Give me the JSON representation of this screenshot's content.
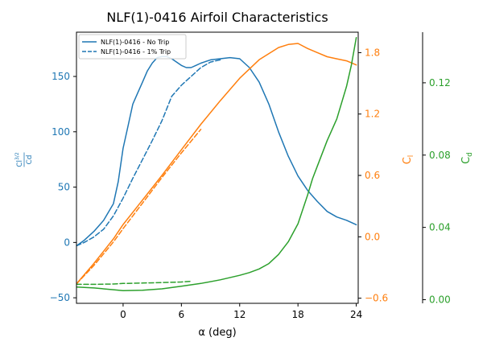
{
  "chart_data": {
    "type": "line",
    "title": "NLF(1)-0416 Airfoil Characteristics",
    "xlabel": "α (deg)",
    "xlim": [
      -4.8,
      24.2
    ],
    "x_ticks": [
      0,
      6,
      12,
      18,
      24
    ],
    "axes": [
      {
        "id": "ld",
        "position": "left",
        "label_num": "Cl",
        "label_sup": "3/2",
        "label_den": "Cd",
        "color": "#1f77b4",
        "ylim": [
          -55,
          190
        ],
        "ticks": [
          -50,
          0,
          50,
          100,
          150
        ]
      },
      {
        "id": "cl",
        "position": "right",
        "label_main": "C",
        "label_sub": "l",
        "color": "#ff7f0e",
        "ylim": [
          -0.65,
          2.0
        ],
        "ticks": [
          -0.6,
          0.0,
          0.6,
          1.2,
          1.8
        ],
        "tick_labels": [
          "−0.6",
          "0.0",
          "0.6",
          "1.2",
          "1.8"
        ]
      },
      {
        "id": "cd",
        "position": "right-offset",
        "label_main": "C",
        "label_sub": "d",
        "color": "#2ca02c",
        "ylim": [
          -0.002,
          0.148
        ],
        "ticks": [
          0.0,
          0.04,
          0.08,
          0.12
        ],
        "tick_labels": [
          "0.00",
          "0.04",
          "0.08",
          "0.12"
        ]
      }
    ],
    "legend": {
      "placement": "top-left",
      "entries": [
        "NLF(1)-0416 - No Trip",
        "NLF(1)-0416 - 1% Trip"
      ]
    },
    "series": [
      {
        "name": "NLF(1)-0416 - No Trip",
        "axis": "ld",
        "color": "#1f77b4",
        "style": "solid",
        "x": [
          -4.8,
          -4,
          -3,
          -2,
          -1,
          -0.5,
          0,
          0.5,
          1,
          1.5,
          2,
          2.5,
          3,
          3.5,
          4,
          4.5,
          5,
          5.5,
          6,
          6.5,
          7,
          7.5,
          8,
          9,
          10,
          11,
          12,
          13,
          14,
          15,
          16,
          17,
          18,
          19,
          20,
          21,
          22,
          23,
          24
        ],
        "y": [
          -3,
          2,
          10,
          20,
          35,
          55,
          85,
          105,
          125,
          135,
          145,
          155,
          162,
          167,
          168,
          168,
          166,
          163,
          160,
          158,
          158,
          160,
          162,
          165,
          166,
          167,
          166,
          158,
          145,
          125,
          100,
          78,
          60,
          47,
          37,
          28,
          23,
          20,
          16
        ]
      },
      {
        "name": "NLF(1)-0416 - 1% Trip",
        "axis": "ld",
        "color": "#1f77b4",
        "style": "dashed",
        "x": [
          -4.8,
          -4,
          -3,
          -2,
          -1,
          0,
          1,
          2,
          3,
          4,
          5,
          6,
          7,
          8,
          9,
          10
        ],
        "y": [
          -3,
          0,
          5,
          12,
          24,
          40,
          58,
          75,
          92,
          110,
          132,
          142,
          150,
          158,
          163,
          165
        ]
      },
      {
        "name": "Cl - No Trip",
        "axis": "cl",
        "color": "#ff7f0e",
        "style": "solid",
        "x": [
          -4.8,
          -3,
          -1,
          0,
          2,
          4,
          6,
          8,
          10,
          12,
          14,
          16,
          17,
          18,
          19,
          20,
          21,
          22,
          23,
          24
        ],
        "y": [
          -0.46,
          -0.26,
          -0.02,
          0.12,
          0.36,
          0.6,
          0.85,
          1.1,
          1.33,
          1.55,
          1.73,
          1.85,
          1.88,
          1.89,
          1.84,
          1.8,
          1.76,
          1.74,
          1.72,
          1.68
        ]
      },
      {
        "name": "Cl - 1% Trip",
        "axis": "cl",
        "color": "#ff7f0e",
        "style": "dashed",
        "x": [
          -4.8,
          -3,
          -1,
          0,
          2,
          4,
          6,
          8
        ],
        "y": [
          -0.46,
          -0.28,
          -0.05,
          0.08,
          0.33,
          0.58,
          0.82,
          1.05
        ]
      },
      {
        "name": "Cd - No Trip",
        "axis": "cd",
        "color": "#2ca02c",
        "style": "solid",
        "x": [
          -4.8,
          -3,
          -1,
          0,
          2,
          4,
          6,
          8,
          10,
          12,
          13,
          14,
          15,
          16,
          17,
          18,
          19,
          19.5,
          20,
          21,
          22,
          23,
          23.5,
          24
        ],
        "y": [
          0.007,
          0.0065,
          0.0055,
          0.005,
          0.0052,
          0.006,
          0.0075,
          0.009,
          0.011,
          0.0135,
          0.015,
          0.017,
          0.02,
          0.025,
          0.032,
          0.042,
          0.058,
          0.067,
          0.074,
          0.088,
          0.1,
          0.118,
          0.13,
          0.145
        ]
      },
      {
        "name": "Cd - 1% Trip",
        "axis": "cd",
        "color": "#2ca02c",
        "style": "dashed",
        "x": [
          -4.8,
          -3,
          -1,
          0,
          2,
          4,
          6,
          7
        ],
        "y": [
          0.0085,
          0.0085,
          0.0087,
          0.009,
          0.0092,
          0.0095,
          0.0098,
          0.0102
        ]
      }
    ]
  }
}
